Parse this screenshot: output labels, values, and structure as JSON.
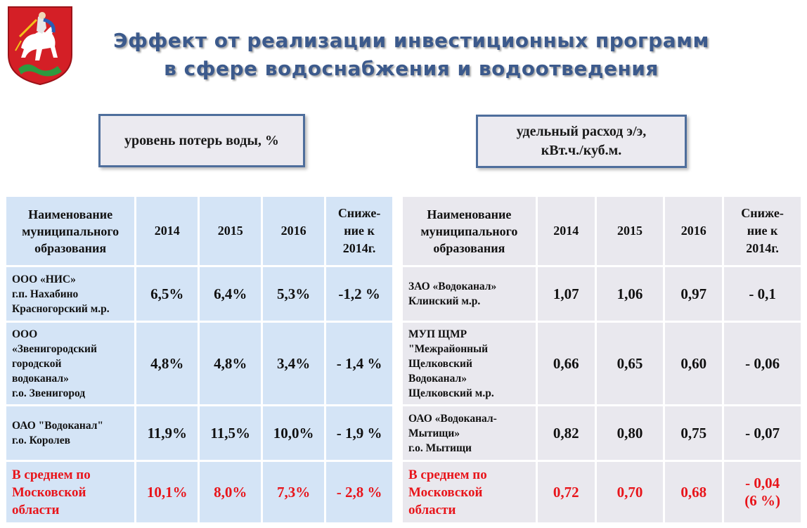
{
  "title": {
    "line1": "Эффект от реализации инвестиционных программ",
    "line2": "в сфере водоснабжения и водоотведения"
  },
  "metrics": {
    "left": "уровень потерь воды, %",
    "right_line1": "удельный расход э/э,",
    "right_line2": "кВт.ч./куб.м."
  },
  "left_table": {
    "headers": {
      "name_l1": "Наименование",
      "name_l2": "муниципального",
      "name_l3": "образования",
      "y2014": "2014",
      "y2015": "2015",
      "y2016": "2016",
      "dec_l1": "Сниже-",
      "dec_l2": "ние к",
      "dec_l3": "2014г."
    },
    "rows": [
      {
        "name_lines": [
          "ООО «НИС»",
          "г.п. Нахабино",
          "Красногорский м.р."
        ],
        "v2014": "6,5%",
        "v2015": "6,4%",
        "v2016": "5,3%",
        "dec": "-1,2 %"
      },
      {
        "name_lines": [
          "ООО",
          "«Звенигородский",
          "городской",
          "водоканал»",
          "г.о. Звенигород"
        ],
        "v2014": "4,8%",
        "v2015": "4,8%",
        "v2016": "3,4%",
        "dec": "- 1,4 %"
      },
      {
        "name_lines": [
          "ОАО \"Водоканал\"",
          "г.о. Королев"
        ],
        "v2014": "11,9%",
        "v2015": "11,5%",
        "v2016": "10,0%",
        "dec": "- 1,9 %"
      },
      {
        "name_lines": [
          "В среднем по",
          "Московской",
          "области"
        ],
        "v2014": "10,1%",
        "v2015": "8,0%",
        "v2016": "7,3%",
        "dec": "- 2,8 %"
      }
    ]
  },
  "right_table": {
    "headers": {
      "name_l1": "Наименование",
      "name_l2": "муниципального",
      "name_l3": "образования",
      "y2014": "2014",
      "y2015": "2015",
      "y2016": "2016",
      "dec_l1": "Сниже-",
      "dec_l2": "ние к",
      "dec_l3": "2014г."
    },
    "rows": [
      {
        "name_lines": [
          "ЗАО «Водоканал»",
          "Клинский м.р."
        ],
        "v2014": "1,07",
        "v2015": "1,06",
        "v2016": "0,97",
        "dec_l1": "- 0,1",
        "dec_l2": ""
      },
      {
        "name_lines": [
          "МУП ЩМР",
          "\"Межрайонный",
          "Щелковский",
          "Водоканал»",
          "Щелковский м.р."
        ],
        "v2014": "0,66",
        "v2015": "0,65",
        "v2016": "0,60",
        "dec_l1": "- 0,06",
        "dec_l2": ""
      },
      {
        "name_lines": [
          "ОАО «Водоканал-",
          "Мытищи»",
          "г.о. Мытищи"
        ],
        "v2014": "0,82",
        "v2015": "0,80",
        "v2016": "0,75",
        "dec_l1": "- 0,07",
        "dec_l2": ""
      },
      {
        "name_lines": [
          "В среднем по",
          "Московской",
          "области"
        ],
        "v2014": "0,72",
        "v2015": "0,70",
        "v2016": "0,68",
        "dec_l1": "- 0,04",
        "dec_l2": "(6 %)"
      }
    ]
  },
  "colors": {
    "title": "#3c5a8c",
    "highlight_red": "#e8151b",
    "left_cell_bg": "#d4e4f6",
    "right_cell_bg": "#e9e8ee",
    "box_border": "#4e6e9c"
  },
  "icons": {
    "coat_of_arms": "moscow-oblast-coat-of-arms"
  }
}
